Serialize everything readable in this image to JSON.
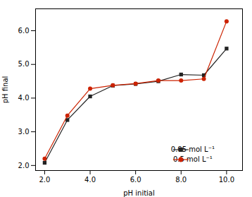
{
  "chart_data": {
    "type": "line",
    "xlabel": "pH initial",
    "ylabel": "pH final",
    "x": [
      2,
      3,
      4,
      5,
      6,
      7,
      8,
      9,
      10
    ],
    "series": [
      {
        "name": "0.05 mol L⁻¹",
        "color": "#222222",
        "marker": "square",
        "values": [
          2.08,
          3.35,
          4.05,
          4.37,
          4.42,
          4.5,
          4.7,
          4.68,
          5.47
        ]
      },
      {
        "name": "0.5 mol L⁻¹",
        "color": "#cc2200",
        "marker": "circle",
        "values": [
          2.2,
          3.48,
          4.28,
          4.38,
          4.43,
          4.52,
          4.52,
          4.57,
          6.28
        ]
      }
    ],
    "xlim": [
      1.6,
      10.7
    ],
    "ylim": [
      1.85,
      6.65
    ],
    "xticks": [
      {
        "value": 2,
        "label": "2.0"
      },
      {
        "value": 4,
        "label": "4.0"
      },
      {
        "value": 6,
        "label": "6.0"
      },
      {
        "value": 8,
        "label": "8.0"
      },
      {
        "value": 10,
        "label": "10.0"
      }
    ],
    "yticks": [
      {
        "value": 2,
        "label": "2.0"
      },
      {
        "value": 3,
        "label": "3.0"
      },
      {
        "value": 4,
        "label": "4.0"
      },
      {
        "value": 5,
        "label": "5.0"
      },
      {
        "value": 6,
        "label": "6.0"
      }
    ],
    "grid": false,
    "legend": "lower right"
  }
}
